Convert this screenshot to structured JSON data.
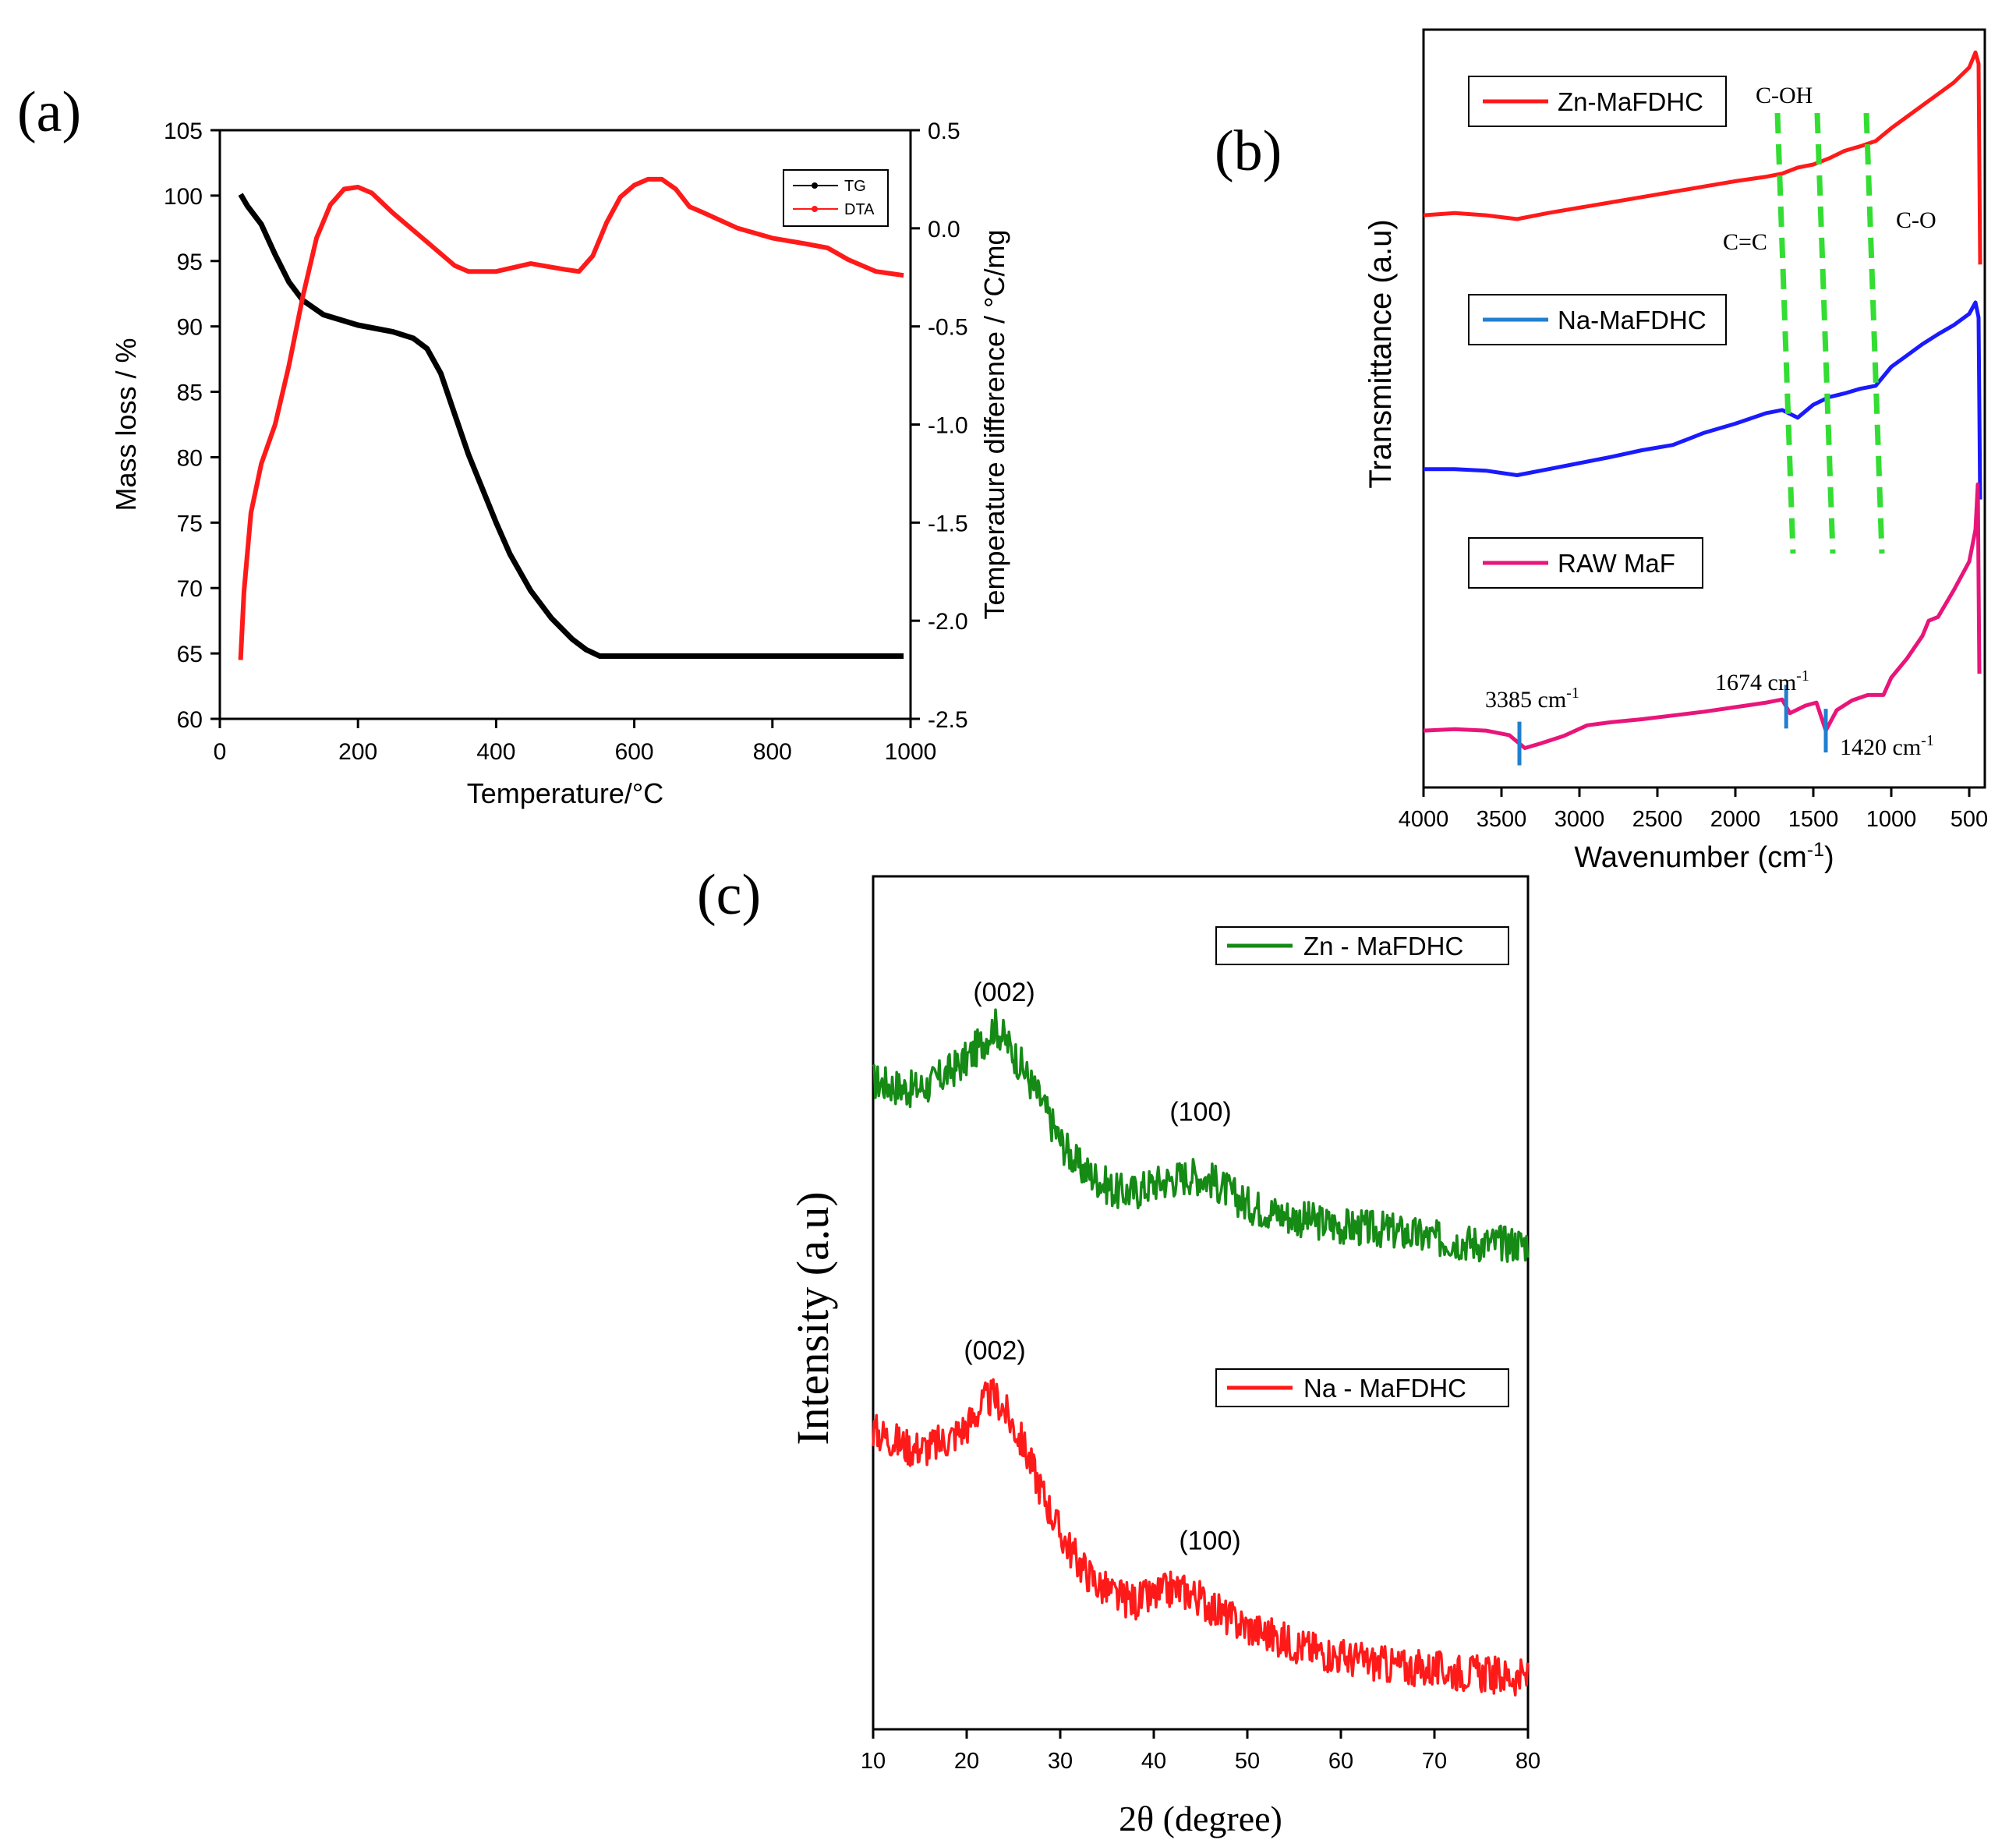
{
  "colors": {
    "black": "#000000",
    "tg": "#000000",
    "dta": "#ff1a1a",
    "zn_ftir": "#ff1a1a",
    "na_ftir": "#1a1aff",
    "raw_ftir": "#e8157a",
    "ftir_legend_na": "#2080d0",
    "band_marker": "#1f7fd0",
    "dashed_guides": "#33dd33",
    "zn_xrd": "#158a15",
    "na_xrd": "#ff1a1a"
  },
  "chart_data": [
    {
      "panel_label": "(a)",
      "type": "line",
      "xlabel": "Temperature/°C",
      "ylabel": "Mass loss / %",
      "y2label": "Temperature difference / °C/mg",
      "xlim": [
        0,
        1000
      ],
      "ylim": [
        60,
        105
      ],
      "y2lim": [
        -2.5,
        0.5
      ],
      "xticks": [
        "0",
        "200",
        "400",
        "600",
        "800",
        "1000"
      ],
      "yticks": [
        "60",
        "65",
        "70",
        "75",
        "80",
        "85",
        "90",
        "95",
        "100",
        "105"
      ],
      "y2ticks": [
        "-2.5",
        "-2.0",
        "-1.5",
        "-1.0",
        "-0.5",
        "0.0",
        "0.5"
      ],
      "legend_position": "top-right",
      "series": [
        {
          "name": "TG",
          "axis": "left",
          "color": "#000000",
          "points": [
            [
              30,
              100.1
            ],
            [
              40,
              99.2
            ],
            [
              60,
              97.8
            ],
            [
              80,
              95.5
            ],
            [
              100,
              93.4
            ],
            [
              120,
              92.0
            ],
            [
              150,
              90.9
            ],
            [
              200,
              90.1
            ],
            [
              250,
              89.6
            ],
            [
              280,
              89.1
            ],
            [
              300,
              88.3
            ],
            [
              320,
              86.4
            ],
            [
              340,
              83.3
            ],
            [
              360,
              80.2
            ],
            [
              380,
              77.6
            ],
            [
              400,
              75.0
            ],
            [
              420,
              72.6
            ],
            [
              450,
              69.8
            ],
            [
              480,
              67.7
            ],
            [
              510,
              66.1
            ],
            [
              530,
              65.3
            ],
            [
              550,
              64.8
            ],
            [
              600,
              64.8
            ],
            [
              700,
              64.8
            ],
            [
              800,
              64.8
            ],
            [
              900,
              64.8
            ],
            [
              990,
              64.8
            ]
          ]
        },
        {
          "name": "DTA",
          "axis": "right",
          "color": "#ff1a1a",
          "points": [
            [
              30,
              -2.2
            ],
            [
              35,
              -1.85
            ],
            [
              45,
              -1.45
            ],
            [
              60,
              -1.2
            ],
            [
              80,
              -1.0
            ],
            [
              100,
              -0.7
            ],
            [
              120,
              -0.35
            ],
            [
              140,
              -0.05
            ],
            [
              160,
              0.12
            ],
            [
              180,
              0.2
            ],
            [
              200,
              0.21
            ],
            [
              220,
              0.18
            ],
            [
              250,
              0.08
            ],
            [
              300,
              -0.07
            ],
            [
              340,
              -0.19
            ],
            [
              360,
              -0.22
            ],
            [
              400,
              -0.22
            ],
            [
              450,
              -0.18
            ],
            [
              500,
              -0.21
            ],
            [
              520,
              -0.22
            ],
            [
              540,
              -0.14
            ],
            [
              560,
              0.03
            ],
            [
              580,
              0.16
            ],
            [
              600,
              0.22
            ],
            [
              620,
              0.25
            ],
            [
              640,
              0.25
            ],
            [
              660,
              0.2
            ],
            [
              680,
              0.11
            ],
            [
              700,
              0.08
            ],
            [
              750,
              0.0
            ],
            [
              800,
              -0.05
            ],
            [
              850,
              -0.08
            ],
            [
              880,
              -0.1
            ],
            [
              910,
              -0.16
            ],
            [
              950,
              -0.22
            ],
            [
              990,
              -0.24
            ]
          ]
        }
      ]
    },
    {
      "panel_label": "(b)",
      "type": "line",
      "xlabel": "Wavenumber (cm",
      "xlabel_sup": "-1",
      "xlabel_end": ")",
      "ylabel": "Transmittance (a.u)",
      "xlim": [
        4000,
        400
      ],
      "ylim": [
        0,
        100
      ],
      "xticks": [
        "4000",
        "3500",
        "3000",
        "2500",
        "2000",
        "1500",
        "1000",
        "500"
      ],
      "legend_position": "left",
      "series": [
        {
          "name": "Zn-MaFDHC",
          "color": "#ff1a1a",
          "points": [
            [
              4000,
              75.5
            ],
            [
              3800,
              75.8
            ],
            [
              3600,
              75.5
            ],
            [
              3400,
              75
            ],
            [
              3200,
              75.8
            ],
            [
              3000,
              76.5
            ],
            [
              2800,
              77.2
            ],
            [
              2600,
              77.9
            ],
            [
              2400,
              78.6
            ],
            [
              2200,
              79.3
            ],
            [
              2000,
              80
            ],
            [
              1800,
              80.6
            ],
            [
              1700,
              81
            ],
            [
              1600,
              81.8
            ],
            [
              1500,
              82.2
            ],
            [
              1400,
              83
            ],
            [
              1300,
              84
            ],
            [
              1200,
              84.6
            ],
            [
              1100,
              85.3
            ],
            [
              1000,
              87
            ],
            [
              900,
              88.5
            ],
            [
              800,
              90
            ],
            [
              700,
              91.5
            ],
            [
              600,
              93
            ],
            [
              500,
              95
            ],
            [
              460,
              97
            ],
            [
              440,
              95.5
            ],
            [
              430,
              69
            ]
          ]
        },
        {
          "name": "Na-MaFDHC",
          "color": "#1a1aff",
          "points": [
            [
              4000,
              42
            ],
            [
              3800,
              42
            ],
            [
              3600,
              41.8
            ],
            [
              3400,
              41.2
            ],
            [
              3200,
              42
            ],
            [
              3000,
              42.8
            ],
            [
              2800,
              43.6
            ],
            [
              2600,
              44.5
            ],
            [
              2400,
              45.2
            ],
            [
              2200,
              46.8
            ],
            [
              2000,
              48
            ],
            [
              1800,
              49.4
            ],
            [
              1700,
              49.8
            ],
            [
              1600,
              48.8
            ],
            [
              1500,
              50.5
            ],
            [
              1400,
              51.5
            ],
            [
              1300,
              52
            ],
            [
              1200,
              52.6
            ],
            [
              1100,
              53
            ],
            [
              1000,
              55.5
            ],
            [
              900,
              57
            ],
            [
              800,
              58.5
            ],
            [
              700,
              59.8
            ],
            [
              600,
              61
            ],
            [
              500,
              62.5
            ],
            [
              460,
              64
            ],
            [
              440,
              62
            ],
            [
              430,
              38
            ]
          ]
        },
        {
          "name": "RAW MaF",
          "color": "#e8157a",
          "points": [
            [
              4000,
              7.5
            ],
            [
              3800,
              7.7
            ],
            [
              3600,
              7.5
            ],
            [
              3450,
              6.9
            ],
            [
              3350,
              5.2
            ],
            [
              3250,
              5.8
            ],
            [
              3100,
              6.8
            ],
            [
              2950,
              8.2
            ],
            [
              2800,
              8.6
            ],
            [
              2600,
              9
            ],
            [
              2400,
              9.5
            ],
            [
              2200,
              10
            ],
            [
              2000,
              10.6
            ],
            [
              1800,
              11.2
            ],
            [
              1700,
              11.6
            ],
            [
              1650,
              9.8
            ],
            [
              1550,
              10.8
            ],
            [
              1480,
              11.2
            ],
            [
              1420,
              7.5
            ],
            [
              1350,
              10.2
            ],
            [
              1250,
              11.5
            ],
            [
              1150,
              12.2
            ],
            [
              1050,
              12.2
            ],
            [
              1000,
              14.5
            ],
            [
              900,
              17
            ],
            [
              800,
              20
            ],
            [
              760,
              22
            ],
            [
              700,
              22.5
            ],
            [
              600,
              26
            ],
            [
              500,
              29.8
            ],
            [
              460,
              34
            ],
            [
              445,
              40
            ],
            [
              435,
              15
            ]
          ]
        }
      ],
      "band_labels": [
        {
          "text": "3385 cm",
          "sup": "-1",
          "wavenumber": 3385
        },
        {
          "text": "1674 cm",
          "sup": "-1",
          "wavenumber": 1674
        },
        {
          "text": "1420 cm",
          "sup": "-1",
          "wavenumber": 1420
        }
      ],
      "group_labels": [
        "C=C",
        "C-OH",
        "C-O"
      ]
    },
    {
      "panel_label": "(c)",
      "type": "line",
      "xlabel": "2θ (degree)",
      "ylabel": "Intensity (a.u)",
      "xlim": [
        10,
        80
      ],
      "ylim": [
        0,
        100
      ],
      "xticks": [
        "10",
        "20",
        "30",
        "40",
        "50",
        "60",
        "70",
        "80"
      ],
      "legend_position": "right",
      "noise_amplitude": 2.2,
      "series": [
        {
          "name": "Zn - MaFDHC",
          "color": "#158a15",
          "points": [
            [
              10,
              76
            ],
            [
              12,
              75.5
            ],
            [
              14,
              75
            ],
            [
              16,
              75.5
            ],
            [
              18,
              77
            ],
            [
              20,
              78.5
            ],
            [
              22,
              81
            ],
            [
              23,
              82.5
            ],
            [
              24,
              81
            ],
            [
              26,
              77.5
            ],
            [
              28,
              73.5
            ],
            [
              30,
              69
            ],
            [
              32,
              66
            ],
            [
              34,
              64.5
            ],
            [
              36,
              63
            ],
            [
              38,
              63
            ],
            [
              40,
              64
            ],
            [
              42,
              64.5
            ],
            [
              44,
              65
            ],
            [
              46,
              64.5
            ],
            [
              48,
              63
            ],
            [
              50,
              61.5
            ],
            [
              55,
              60
            ],
            [
              60,
              59
            ],
            [
              65,
              58.5
            ],
            [
              70,
              57.5
            ],
            [
              75,
              57
            ],
            [
              80,
              57
            ]
          ]
        },
        {
          "name": "Na - MaFDHC",
          "color": "#ff1a1a",
          "points": [
            [
              10,
              35
            ],
            [
              12,
              34
            ],
            [
              14,
              33
            ],
            [
              16,
              33
            ],
            [
              18,
              34
            ],
            [
              20,
              35.5
            ],
            [
              22,
              38.5
            ],
            [
              23,
              39
            ],
            [
              24,
              37.5
            ],
            [
              26,
              33.5
            ],
            [
              28,
              28
            ],
            [
              30,
              23
            ],
            [
              32,
              19.5
            ],
            [
              34,
              17
            ],
            [
              36,
              15.5
            ],
            [
              38,
              15
            ],
            [
              40,
              15.5
            ],
            [
              42,
              16.5
            ],
            [
              44,
              16
            ],
            [
              46,
              14.5
            ],
            [
              48,
              13
            ],
            [
              50,
              12
            ],
            [
              55,
              10
            ],
            [
              60,
              8.5
            ],
            [
              65,
              7.5
            ],
            [
              70,
              7
            ],
            [
              75,
              6.5
            ],
            [
              80,
              6
            ]
          ]
        }
      ],
      "peak_labels": [
        {
          "text": "(002)",
          "series": 0,
          "two_theta": 24
        },
        {
          "text": "(100)",
          "series": 0,
          "two_theta": 45
        },
        {
          "text": "(002)",
          "series": 1,
          "two_theta": 23
        },
        {
          "text": "(100)",
          "series": 1,
          "two_theta": 46
        }
      ]
    }
  ]
}
